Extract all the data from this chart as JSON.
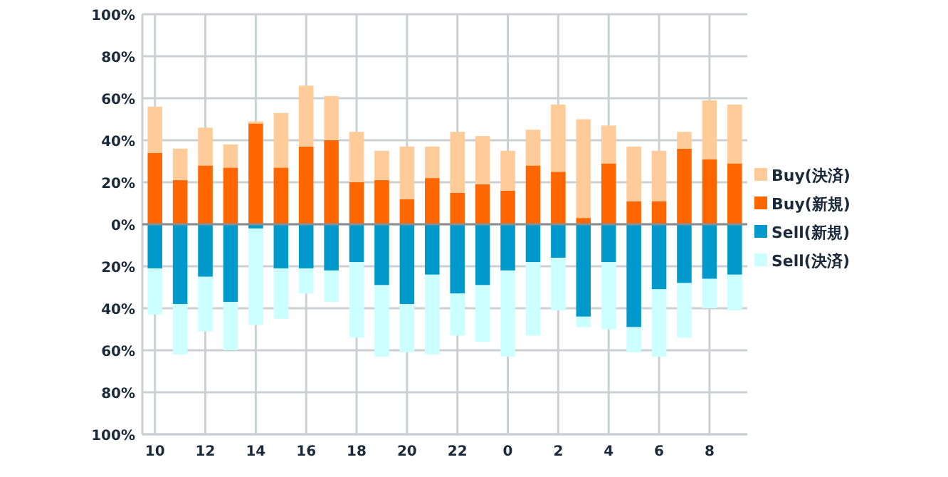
{
  "chart_data": {
    "type": "bar",
    "stacked": true,
    "categories": [
      "10",
      null,
      "12",
      null,
      "14",
      null,
      "16",
      null,
      "18",
      null,
      "20",
      null,
      "22",
      null,
      "0",
      null,
      "2",
      null,
      "4",
      null,
      "6",
      null,
      "8",
      null
    ],
    "series": [
      {
        "name": "Buy(新規)",
        "color": "#ff6600",
        "values": [
          34,
          21,
          28,
          27,
          48,
          27,
          37,
          40,
          20,
          21,
          12,
          22,
          15,
          19,
          16,
          28,
          25,
          3,
          29,
          11,
          11,
          36,
          31,
          29
        ]
      },
      {
        "name": "Buy(決済)",
        "color": "#ffcc99",
        "values": [
          22,
          15,
          18,
          11,
          1,
          26,
          29,
          21,
          24,
          14,
          25,
          15,
          29,
          23,
          19,
          17,
          32,
          47,
          18,
          26,
          24,
          8,
          28,
          28
        ]
      },
      {
        "name": "Sell(新規)",
        "color": "#0099cc",
        "values": [
          -21,
          -38,
          -25,
          -37,
          -2,
          -21,
          -21,
          -22,
          -18,
          -29,
          -38,
          -24,
          -33,
          -29,
          -22,
          -18,
          -16,
          -44,
          -18,
          -49,
          -31,
          -28,
          -26,
          -24
        ]
      },
      {
        "name": "Sell(決済)",
        "color": "#ccffff",
        "values": [
          -22,
          -24,
          -26,
          -23,
          -46,
          -24,
          -12,
          -15,
          -36,
          -34,
          -23,
          -38,
          -20,
          -27,
          -41,
          -35,
          -25,
          -5,
          -32,
          -12,
          -32,
          -26,
          -14,
          -17
        ]
      }
    ],
    "ylim": [
      -100,
      100
    ],
    "yticks": [
      {
        "value": -100,
        "label": "100%"
      },
      {
        "value": -80,
        "label": "80%"
      },
      {
        "value": -60,
        "label": "60%"
      },
      {
        "value": -40,
        "label": "40%"
      },
      {
        "value": -20,
        "label": "20%"
      },
      {
        "value": 0,
        "label": "0%"
      },
      {
        "value": 20,
        "label": "20%"
      },
      {
        "value": 40,
        "label": "40%"
      },
      {
        "value": 60,
        "label": "60%"
      },
      {
        "value": 80,
        "label": "80%"
      },
      {
        "value": 100,
        "label": "100%"
      }
    ],
    "grid": true,
    "legend": "right"
  }
}
